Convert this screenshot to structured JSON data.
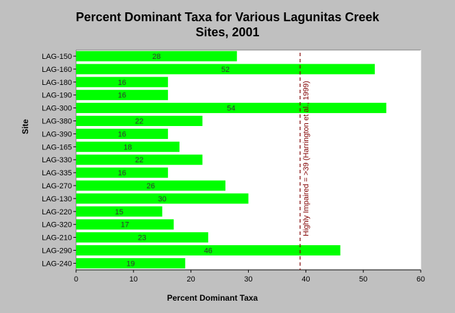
{
  "chart_data": {
    "type": "bar",
    "orientation": "horizontal",
    "title_line1": "Percent Dominant Taxa for Various Lagunitas Creek",
    "title_line2": "Sites, 2001",
    "xlabel": "Percent Dominant Taxa",
    "ylabel": "Site",
    "xlim": [
      0,
      60
    ],
    "xticks": [
      0,
      10,
      20,
      30,
      40,
      50,
      60
    ],
    "categories": [
      "LAG-150",
      "LAG-160",
      "LAG-180",
      "LAG-190",
      "LAG-300",
      "LAG-380",
      "LAG-390",
      "LAG-165",
      "LAG-330",
      "LAG-335",
      "LAG-270",
      "LAG-130",
      "LAG-220",
      "LAG-320",
      "LAG-210",
      "LAG-290",
      "LAG-240"
    ],
    "values": [
      28,
      52,
      16,
      16,
      54,
      22,
      16,
      18,
      22,
      16,
      26,
      30,
      15,
      17,
      23,
      46,
      19
    ],
    "reference_line": {
      "value": 39,
      "label": "Highly Impaired = >39 (Harrington et al., 1999)"
    },
    "grid": false,
    "colors": {
      "bar": "#00ff00",
      "reference": "#800000",
      "plot_bg": "#ffffff",
      "figure_bg": "#c0c0c0"
    }
  }
}
